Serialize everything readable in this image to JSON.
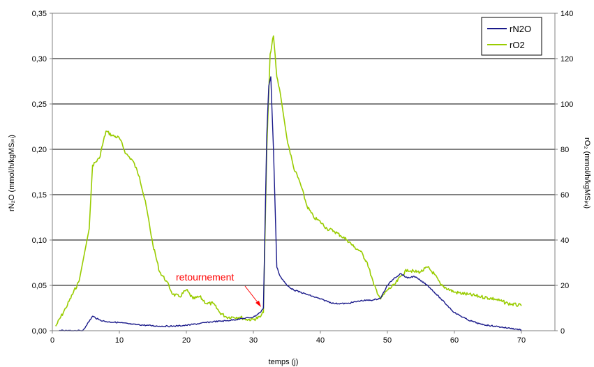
{
  "chart_data": {
    "type": "line",
    "xlabel": "temps (j)",
    "ylabel_left": "rN₂O (mmol/h/kgMSᵢₙᵢ)",
    "ylabel_right": "rO₂ (mmol/h/kgMSᵢₙᵢ)",
    "xlim": [
      0,
      75
    ],
    "ylim_left": [
      0,
      0.35
    ],
    "ylim_right": [
      0,
      140
    ],
    "x_ticks": [
      "0",
      "10",
      "20",
      "30",
      "40",
      "50",
      "60",
      "70"
    ],
    "y_left_ticks": [
      "0,00",
      "0,05",
      "0,10",
      "0,15",
      "0,20",
      "0,25",
      "0,30",
      "0,35"
    ],
    "y_right_ticks": [
      "0",
      "20",
      "40",
      "60",
      "80",
      "100",
      "120",
      "140"
    ],
    "grid": "horizontal",
    "legend_position": "top-right",
    "annotation": {
      "text": "retournement",
      "x": 31.5,
      "y_left": 0.02
    },
    "series": [
      {
        "name": "rN2O",
        "axis": "left",
        "color": "#1a1a8a",
        "x": [
          1,
          3,
          4.5,
          5,
          6,
          7,
          8,
          10,
          12,
          14,
          16,
          18,
          20,
          22,
          24,
          26,
          28,
          30,
          31,
          31.5,
          32,
          32.3,
          32.6,
          33,
          33.5,
          34,
          35,
          36,
          38,
          40,
          42,
          44,
          46,
          48,
          49,
          50,
          51,
          52,
          53,
          54,
          56,
          58,
          60,
          62,
          64,
          66,
          68,
          70
        ],
        "values": [
          0.0,
          0.0,
          0.0,
          0.005,
          0.016,
          0.012,
          0.01,
          0.009,
          0.007,
          0.006,
          0.005,
          0.005,
          0.006,
          0.008,
          0.01,
          0.011,
          0.013,
          0.015,
          0.02,
          0.025,
          0.215,
          0.27,
          0.28,
          0.2,
          0.07,
          0.06,
          0.05,
          0.045,
          0.04,
          0.035,
          0.03,
          0.03,
          0.033,
          0.034,
          0.036,
          0.05,
          0.058,
          0.063,
          0.058,
          0.06,
          0.05,
          0.035,
          0.02,
          0.012,
          0.007,
          0.005,
          0.003,
          0.001
        ]
      },
      {
        "name": "rO2",
        "axis": "right",
        "color": "#99cc00",
        "x": [
          0.5,
          2,
          4,
          5.5,
          6,
          7,
          8,
          9,
          10,
          11,
          12,
          13,
          14,
          15,
          16,
          17,
          18,
          19,
          20,
          21,
          22,
          23,
          24,
          25,
          26,
          27,
          28,
          29,
          30,
          31,
          31.5,
          32,
          32.5,
          33,
          33.5,
          34,
          35,
          36,
          37,
          38,
          39,
          40,
          41,
          42,
          43,
          44,
          45,
          46,
          47,
          48,
          49,
          50,
          51,
          52,
          53,
          54,
          55,
          56,
          57,
          58,
          60,
          62,
          64,
          66,
          68,
          70
        ],
        "values": [
          2,
          10,
          22,
          45,
          73,
          76,
          88,
          86,
          85,
          78,
          75,
          68,
          55,
          38,
          26,
          22,
          16,
          15,
          18,
          14,
          15,
          12,
          12,
          8,
          6,
          6,
          6,
          5,
          5,
          6,
          8,
          80,
          122,
          130,
          112,
          105,
          85,
          72,
          65,
          55,
          50,
          48,
          45,
          44,
          42,
          40,
          37,
          35,
          30,
          20,
          14,
          18,
          20,
          24,
          27,
          26,
          26,
          28,
          25,
          20,
          17,
          16,
          15,
          14,
          12,
          11
        ]
      }
    ]
  }
}
